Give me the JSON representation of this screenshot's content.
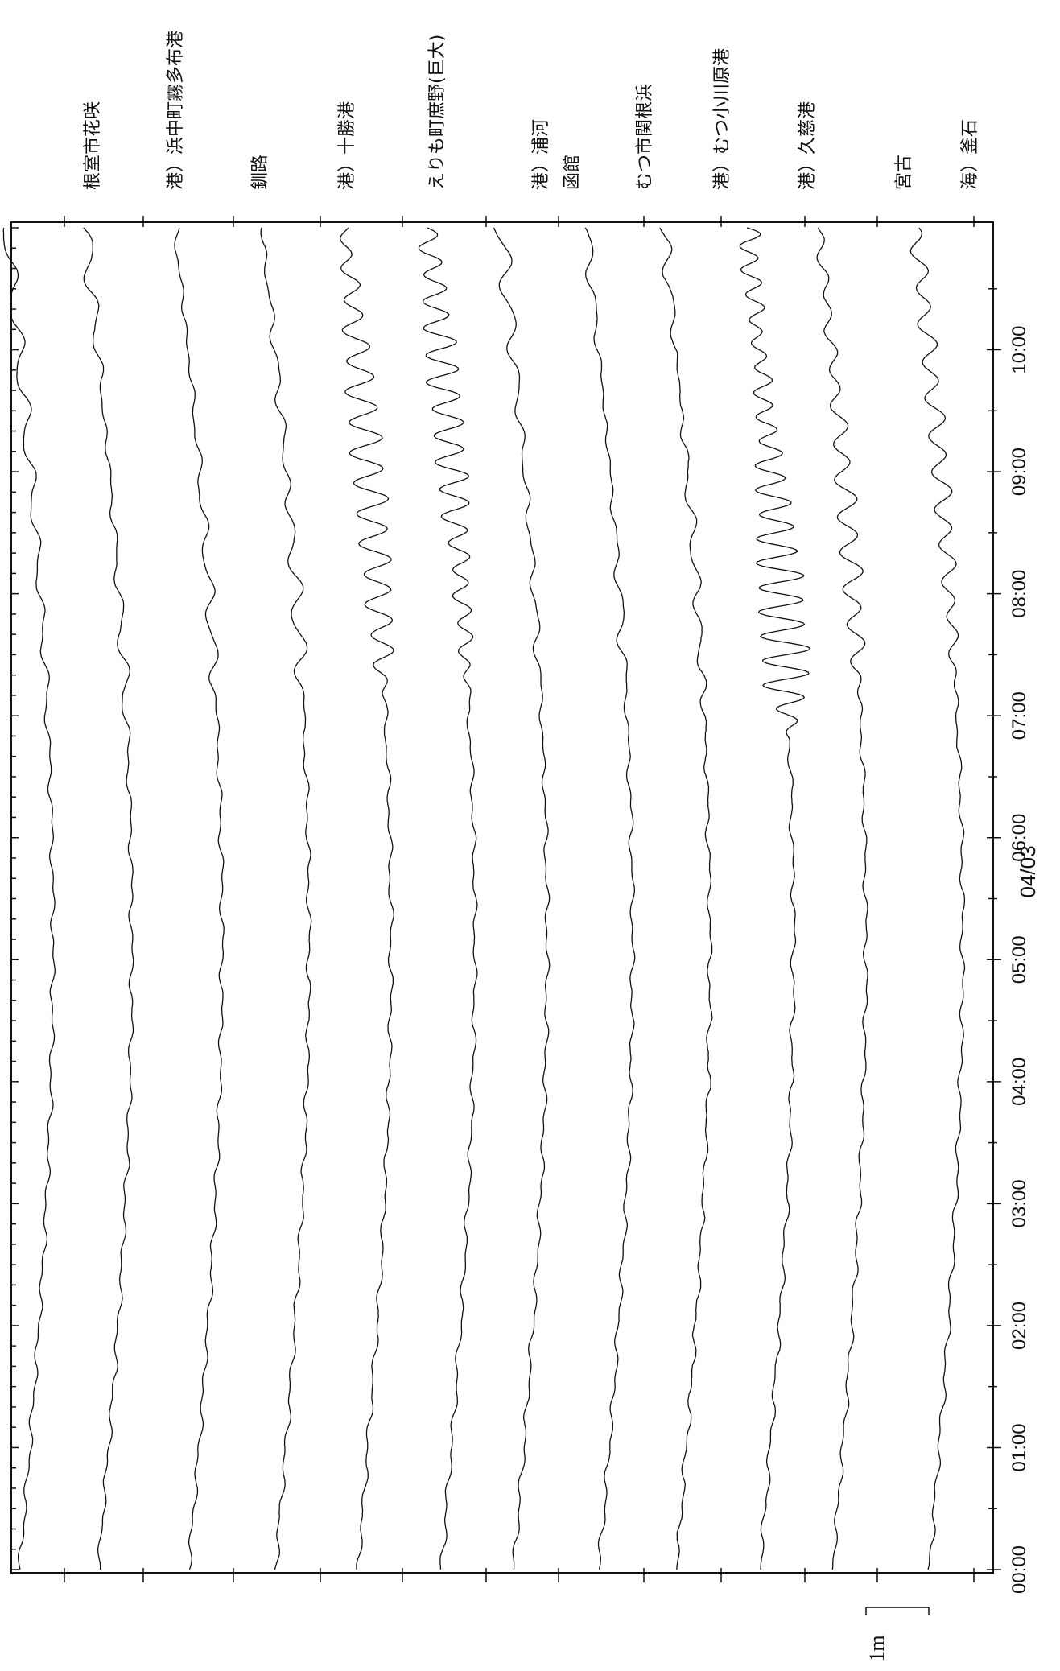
{
  "chart_data": {
    "type": "line",
    "orientation": "rotated-90",
    "date_label": "04/03",
    "x_ticks": [
      "00:00",
      "01:00",
      "02:00",
      "03:00",
      "04:00",
      "05:00",
      "06:00",
      "07:00",
      "08:00",
      "09:00",
      "10:00"
    ],
    "x_range_hours": [
      0,
      11
    ],
    "scale_bar_label": "1m",
    "series": [
      {
        "name": "根室市花咲",
        "seed": 1,
        "surge": 0.25,
        "surge_start": 6.8,
        "surge_period": 0.55,
        "noise": 0.15
      },
      {
        "name": "港）浜中町霧多布港",
        "seed": 2,
        "surge": 0.3,
        "surge_start": 6.8,
        "surge_period": 0.5,
        "noise": 0.2
      },
      {
        "name": "釧路",
        "seed": 3,
        "surge": 0.25,
        "surge_start": 6.9,
        "surge_period": 0.5,
        "noise": 0.15
      },
      {
        "name": "港）十勝港",
        "seed": 4,
        "surge": 0.3,
        "surge_start": 6.9,
        "surge_period": 0.45,
        "noise": 0.2
      },
      {
        "name": "えりも町庶野(巨大)",
        "seed": 5,
        "surge": 0.9,
        "surge_start": 7.1,
        "surge_period": 0.25,
        "noise": 0.25
      },
      {
        "name": "港）浦河",
        "seed": 6,
        "surge": 0.85,
        "surge_start": 7.0,
        "surge_period": 0.22,
        "noise": 0.2
      },
      {
        "name": "函館",
        "seed": 7,
        "surge": 0.35,
        "surge_start": 7.2,
        "surge_period": 0.5,
        "noise": 0.15
      },
      {
        "name": "むつ市関根浜",
        "seed": 8,
        "surge": 0.25,
        "surge_start": 7.2,
        "surge_period": 0.5,
        "noise": 0.2
      },
      {
        "name": "港）むつ小川原港",
        "seed": 9,
        "surge": 0.3,
        "surge_start": 7.0,
        "surge_period": 0.45,
        "noise": 0.35
      },
      {
        "name": "港）久慈港",
        "seed": 10,
        "surge": 1.25,
        "surge_start": 6.8,
        "surge_period": 0.2,
        "noise": 0.25
      },
      {
        "name": "宮古",
        "seed": 11,
        "surge": 0.5,
        "surge_start": 7.0,
        "surge_period": 0.3,
        "noise": 0.2
      },
      {
        "name": "海）釜石",
        "seed": 12,
        "surge": 0.5,
        "surge_start": 7.0,
        "surge_period": 0.3,
        "noise": 0.2
      }
    ]
  }
}
